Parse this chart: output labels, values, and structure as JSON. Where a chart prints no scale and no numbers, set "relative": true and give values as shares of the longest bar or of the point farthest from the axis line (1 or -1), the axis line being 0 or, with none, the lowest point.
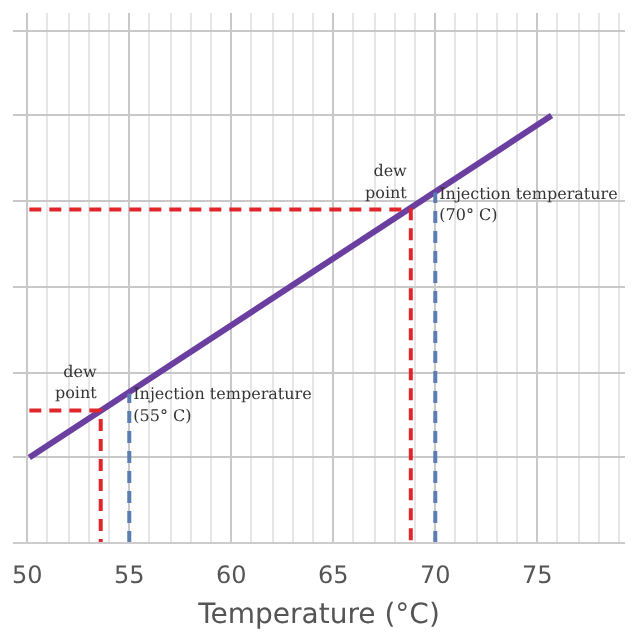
{
  "chart_data": {
    "type": "line",
    "relative": true,
    "xlabel": "Temperature (°C)",
    "xlim": [
      49.3,
      79.3
    ],
    "xticks": [
      50,
      55,
      60,
      65,
      70,
      75
    ],
    "grid": true,
    "series": [
      {
        "color": "#6b3fa0",
        "x": [
          50.1,
          75.7
        ],
        "values": [
          0.2,
          1.0
        ]
      },
      {
        "color": "#e0262b",
        "line_style": "dashed",
        "x": [
          50.1,
          53.6,
          53.6
        ],
        "values": [
          0.31,
          0.31,
          0
        ]
      },
      {
        "color": "#e0262b",
        "line_style": "dashed",
        "x": [
          50.1,
          68.8,
          68.8
        ],
        "values": [
          0.78,
          0.78,
          0
        ]
      },
      {
        "color": "#5b7db1",
        "line_style": "dashed",
        "x": [
          55,
          55
        ],
        "values": [
          0,
          0.35
        ]
      },
      {
        "color": "#5b7db1",
        "line_style": "dashed",
        "x": [
          70,
          70
        ],
        "values": [
          0,
          0.82
        ]
      }
    ],
    "annotations": [
      {
        "text": "dew point",
        "x": 53.6,
        "y": 0.31
      },
      {
        "text": "Injection temperature (55° C)",
        "x": 55,
        "y": 0.35
      },
      {
        "text": "dew point",
        "x": 68.8,
        "y": 0.78
      },
      {
        "text": "Injection temperature (70° C)",
        "x": 70,
        "y": 0.82
      }
    ]
  }
}
